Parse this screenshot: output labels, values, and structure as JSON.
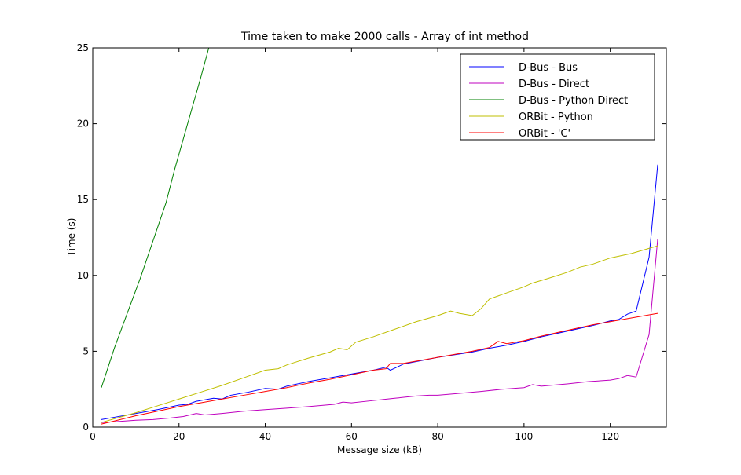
{
  "chart_data": {
    "type": "line",
    "title": "Time taken to make 2000 calls - Array of int method",
    "xlabel": "Message size (kB)",
    "ylabel": "Time (s)",
    "xlim": [
      0,
      133
    ],
    "ylim": [
      0,
      25
    ],
    "xticks": [
      0,
      20,
      40,
      60,
      80,
      100,
      120
    ],
    "yticks": [
      0,
      5,
      10,
      15,
      20,
      25
    ],
    "grid": false,
    "legend_position": "upper-right",
    "series": [
      {
        "name": "D-Bus - Bus",
        "color": "#0000ff",
        "points": [
          [
            2,
            0.5
          ],
          [
            5,
            0.65
          ],
          [
            10,
            0.9
          ],
          [
            15,
            1.15
          ],
          [
            20,
            1.45
          ],
          [
            22,
            1.5
          ],
          [
            24,
            1.7
          ],
          [
            28,
            1.9
          ],
          [
            30,
            1.85
          ],
          [
            32,
            2.1
          ],
          [
            36,
            2.3
          ],
          [
            40,
            2.55
          ],
          [
            43,
            2.5
          ],
          [
            45,
            2.7
          ],
          [
            50,
            3.0
          ],
          [
            55,
            3.25
          ],
          [
            60,
            3.5
          ],
          [
            65,
            3.75
          ],
          [
            68,
            3.95
          ],
          [
            69,
            3.75
          ],
          [
            72,
            4.15
          ],
          [
            80,
            4.6
          ],
          [
            88,
            4.95
          ],
          [
            92,
            5.2
          ],
          [
            96,
            5.4
          ],
          [
            100,
            5.65
          ],
          [
            104,
            5.95
          ],
          [
            108,
            6.2
          ],
          [
            112,
            6.45
          ],
          [
            116,
            6.7
          ],
          [
            120,
            7.0
          ],
          [
            122,
            7.1
          ],
          [
            124,
            7.45
          ],
          [
            126,
            7.65
          ],
          [
            129,
            11.2
          ],
          [
            131,
            17.3
          ]
        ]
      },
      {
        "name": "D-Bus - Direct",
        "color": "#bf00bf",
        "points": [
          [
            2,
            0.3
          ],
          [
            5,
            0.35
          ],
          [
            10,
            0.45
          ],
          [
            14,
            0.5
          ],
          [
            18,
            0.6
          ],
          [
            21,
            0.7
          ],
          [
            24,
            0.9
          ],
          [
            26,
            0.8
          ],
          [
            30,
            0.9
          ],
          [
            35,
            1.05
          ],
          [
            40,
            1.15
          ],
          [
            45,
            1.25
          ],
          [
            50,
            1.35
          ],
          [
            56,
            1.5
          ],
          [
            58,
            1.65
          ],
          [
            60,
            1.6
          ],
          [
            65,
            1.75
          ],
          [
            70,
            1.9
          ],
          [
            75,
            2.05
          ],
          [
            78,
            2.1
          ],
          [
            80,
            2.1
          ],
          [
            84,
            2.2
          ],
          [
            90,
            2.35
          ],
          [
            95,
            2.5
          ],
          [
            100,
            2.6
          ],
          [
            102,
            2.8
          ],
          [
            104,
            2.7
          ],
          [
            110,
            2.85
          ],
          [
            115,
            3.0
          ],
          [
            120,
            3.1
          ],
          [
            122,
            3.2
          ],
          [
            124,
            3.4
          ],
          [
            126,
            3.3
          ],
          [
            129,
            6.1
          ],
          [
            131,
            12.4
          ]
        ]
      },
      {
        "name": "D-Bus - Python Direct",
        "color": "#008000",
        "points": [
          [
            2,
            2.6
          ],
          [
            5,
            5.2
          ],
          [
            8,
            7.5
          ],
          [
            11,
            9.8
          ],
          [
            14,
            12.3
          ],
          [
            17,
            14.8
          ],
          [
            19,
            17.0
          ],
          [
            21,
            19.0
          ],
          [
            23,
            21.0
          ],
          [
            25,
            23.0
          ],
          [
            27,
            25.1
          ]
        ]
      },
      {
        "name": "ORBit - Python",
        "color": "#bfbf00",
        "points": [
          [
            2,
            0.3
          ],
          [
            5,
            0.55
          ],
          [
            10,
            0.95
          ],
          [
            15,
            1.4
          ],
          [
            20,
            1.85
          ],
          [
            25,
            2.3
          ],
          [
            30,
            2.75
          ],
          [
            35,
            3.25
          ],
          [
            40,
            3.75
          ],
          [
            43,
            3.85
          ],
          [
            45,
            4.1
          ],
          [
            50,
            4.55
          ],
          [
            55,
            4.95
          ],
          [
            57,
            5.2
          ],
          [
            59,
            5.1
          ],
          [
            61,
            5.6
          ],
          [
            65,
            5.95
          ],
          [
            70,
            6.45
          ],
          [
            75,
            6.95
          ],
          [
            80,
            7.35
          ],
          [
            83,
            7.65
          ],
          [
            85,
            7.5
          ],
          [
            88,
            7.35
          ],
          [
            90,
            7.8
          ],
          [
            92,
            8.45
          ],
          [
            95,
            8.75
          ],
          [
            100,
            9.25
          ],
          [
            102,
            9.5
          ],
          [
            105,
            9.75
          ],
          [
            110,
            10.2
          ],
          [
            113,
            10.55
          ],
          [
            116,
            10.75
          ],
          [
            120,
            11.15
          ],
          [
            125,
            11.45
          ],
          [
            131,
            11.95
          ]
        ]
      },
      {
        "name": "ORBit - 'C'",
        "color": "#ff0000",
        "points": [
          [
            2,
            0.2
          ],
          [
            5,
            0.4
          ],
          [
            10,
            0.75
          ],
          [
            15,
            1.05
          ],
          [
            20,
            1.35
          ],
          [
            25,
            1.6
          ],
          [
            30,
            1.85
          ],
          [
            35,
            2.1
          ],
          [
            40,
            2.35
          ],
          [
            45,
            2.6
          ],
          [
            50,
            2.9
          ],
          [
            55,
            3.15
          ],
          [
            60,
            3.45
          ],
          [
            65,
            3.75
          ],
          [
            68,
            3.85
          ],
          [
            69,
            4.2
          ],
          [
            72,
            4.2
          ],
          [
            80,
            4.6
          ],
          [
            88,
            5.0
          ],
          [
            92,
            5.25
          ],
          [
            94,
            5.65
          ],
          [
            96,
            5.5
          ],
          [
            100,
            5.7
          ],
          [
            104,
            6.0
          ],
          [
            108,
            6.25
          ],
          [
            112,
            6.5
          ],
          [
            116,
            6.75
          ],
          [
            120,
            6.95
          ],
          [
            125,
            7.2
          ],
          [
            131,
            7.5
          ]
        ]
      }
    ]
  }
}
